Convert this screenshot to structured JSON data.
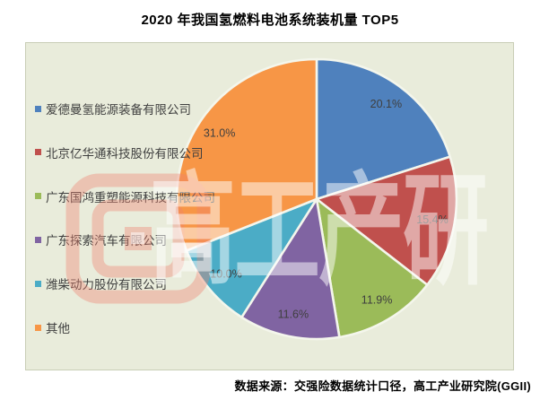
{
  "chart_data": {
    "type": "pie",
    "title": "2020 年我国氢燃料电池系统装机量 TOP5",
    "legend_position": "left",
    "start_angle_deg": 0,
    "direction": "clockwise",
    "plot_bg": "#E9ECDB",
    "series": [
      {
        "name": "爱德曼氢能源装备有限公司",
        "value": 20.1,
        "label": "20.1%",
        "color": "#4F81BD"
      },
      {
        "name": "北京亿华通科技股份有限公司",
        "value": 15.4,
        "label": "15.4%",
        "color": "#C0504D"
      },
      {
        "name": "广东国鸿重塑能源科技有限公司",
        "value": 11.9,
        "label": "11.9%",
        "color": "#9BBB59"
      },
      {
        "name": "广东探索汽车有限公司",
        "value": 11.6,
        "label": "11.6%",
        "color": "#8064A2"
      },
      {
        "name": "潍柴动力股份有限公司",
        "value": 10.0,
        "label": "10.0%",
        "color": "#4BACC6"
      },
      {
        "name": "其他",
        "value": 31.0,
        "label": "31.0%",
        "color": "#F79646"
      }
    ],
    "source_note": "数据来源：交强险数据统计口径，高工产业研究院(GGII)",
    "watermark": {
      "text": "高工产研",
      "logo": "ggii-square-g-logo"
    }
  }
}
